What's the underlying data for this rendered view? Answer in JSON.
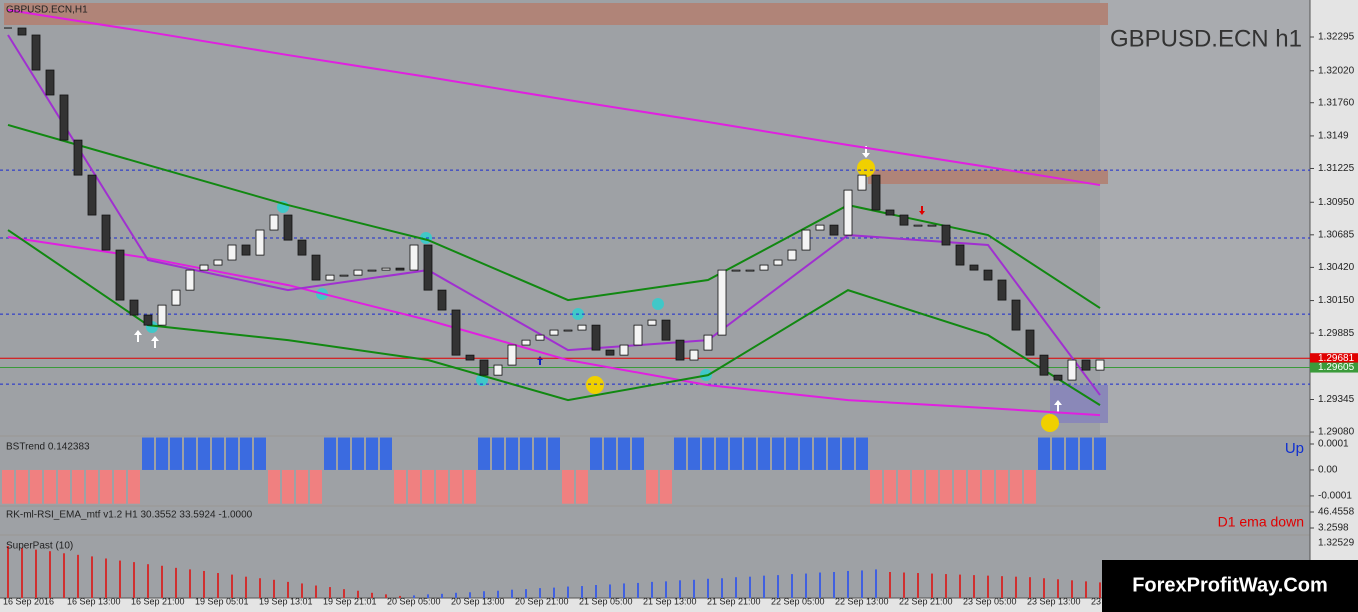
{
  "chart_data": [
    {
      "type": "candlestick",
      "title": "GBPUSD.ECN,H1",
      "symbol_label": "GBPUSD.ECN h1",
      "ylim": [
        1.29056,
        1.32596
      ],
      "yticks": [
        1.32295,
        {
          "value": 1.3202,
          "label": "1.32020"
        },
        {
          "value": 1.3176,
          "label": "1.31760"
        },
        1.3149,
        1.31225,
        {
          "value": 1.3095,
          "label": "1.30950"
        },
        1.30685,
        {
          "value": 1.3042,
          "label": "1.30420"
        },
        {
          "value": 1.3015,
          "label": "1.30150"
        },
        1.29885,
        1.29345,
        {
          "value": 1.2908,
          "label": "1.29080"
        }
      ],
      "categories": [
        "16 Sep 2016",
        "16 Sep 13:00",
        "16 Sep 21:00",
        "19 Sep 05:01",
        "19 Sep 13:01",
        "19 Sep 21:01",
        "20 Sep 05:00",
        "20 Sep 13:00",
        "20 Sep 21:00",
        "21 Sep 05:00",
        "21 Sep 13:00",
        "21 Sep 21:00",
        "22 Sep 05:00",
        "22 Sep 13:00",
        "22 Sep 21:00",
        "23 Sep 05:00",
        "23 Sep 13:00",
        "23"
      ],
      "close": [
        1.32368,
        1.32311,
        1.32026,
        1.31823,
        1.31456,
        1.31171,
        1.30846,
        1.30561,
        1.30154,
        1.30032,
        1.2995,
        1.30113,
        1.30235,
        1.30398,
        1.30439,
        1.3048,
        1.30602,
        1.3052,
        1.30724,
        1.30846,
        1.30642,
        1.3052,
        1.30317,
        1.30357,
        1.30357,
        1.30398,
        1.30398,
        1.30414,
        1.30398,
        1.30602,
        1.30235,
        1.30073,
        1.29706,
        1.29666,
        1.29543,
        1.29625,
        1.29788,
        1.29828,
        1.29869,
        1.2991,
        1.2991,
        1.2995,
        1.29747,
        1.29706,
        1.29788,
        1.2995,
        1.29991,
        1.29828,
        1.29666,
        1.29747,
        1.29869,
        1.30398,
        1.30398,
        1.30398,
        1.30439,
        1.3048,
        1.30561,
        1.30724,
        1.30764,
        1.30683,
        1.31049,
        1.31171,
        1.30887,
        1.30846,
        1.30764,
        1.30764,
        1.30764,
        1.30602,
        1.30439,
        1.30398,
        1.30317,
        1.30154,
        1.2991,
        1.29706,
        1.29543,
        1.29503,
        1.29666,
        1.29584,
        1.29666
      ],
      "overlay_x": [
        0,
        10,
        20,
        30,
        40,
        50,
        60,
        70,
        78
      ],
      "overlays": [
        {
          "color": "#e020e0",
          "values": [
            1.32515,
            1.32336,
            1.32148,
            1.31969,
            1.31782,
            1.31603,
            1.31416,
            1.31237,
            1.3109
          ]
        },
        {
          "color": "#e020e0",
          "values": [
            1.30667,
            1.30496,
            1.30276,
            1.29991,
            1.29666,
            1.29462,
            1.2934,
            1.29275,
            1.29218
          ]
        },
        {
          "color": "#118811",
          "values": [
            1.31579,
            1.31253,
            1.30927,
            1.30642,
            1.30154,
            1.30317,
            1.30927,
            1.30683,
            1.30089
          ]
        },
        {
          "color": "#118811",
          "values": [
            1.30724,
            1.2995,
            1.29828,
            1.29666,
            1.2934,
            1.29543,
            1.30235,
            1.29869,
            1.29299
          ]
        },
        {
          "color": "#a030d0",
          "values": [
            1.32311,
            1.3048,
            1.30235,
            1.30398,
            1.29747,
            1.29828,
            1.30683,
            1.30602,
            1.29381
          ]
        }
      ],
      "levels": [
        {
          "value": 1.31212,
          "color": "#1a2ad0"
        },
        {
          "value": 1.30659,
          "color": "#1a2ad0"
        },
        {
          "value": 1.3004,
          "color": "#1a2ad0"
        },
        {
          "value": 1.2947,
          "color": "#1a2ad0"
        }
      ],
      "price_markers": [
        {
          "value": 1.29681,
          "color": "#e00000"
        },
        {
          "value": 1.29605,
          "color": "#3a9a3a"
        }
      ]
    },
    {
      "type": "bar",
      "title": "BSTrend 0.142383",
      "annotation": "Up",
      "up_color": "#3b6be0",
      "down_color": "#f08080",
      "ylim": [
        -0.000135,
        0.000127
      ],
      "yticks": [
        0.0001,
        {
          "value": 0,
          "label": "0.00"
        },
        -0.0001
      ],
      "values": [
        -0.00013,
        -0.00013,
        -0.00013,
        -0.00013,
        -0.00013,
        -0.00013,
        -0.00013,
        -0.00013,
        -0.00013,
        -0.00013,
        0.000125,
        0.000125,
        0.000125,
        0.000125,
        0.000125,
        0.000125,
        0.000125,
        0.000125,
        0.000125,
        -0.00013,
        -0.00013,
        -0.00013,
        -0.00013,
        0.000125,
        0.000125,
        0.000125,
        0.000125,
        0.000125,
        -0.00013,
        -0.00013,
        -0.00013,
        -0.00013,
        -0.00013,
        -0.00013,
        0.000125,
        0.000125,
        0.000125,
        0.000125,
        0.000125,
        0.000125,
        -0.00013,
        -0.00013,
        0.000125,
        0.000125,
        0.000125,
        0.000125,
        -0.00013,
        -0.00013,
        0.000125,
        0.000125,
        0.000125,
        0.000125,
        0.000125,
        0.000125,
        0.000125,
        0.000125,
        0.000125,
        0.000125,
        0.000125,
        0.000125,
        0.000125,
        0.000125,
        -0.00013,
        -0.00013,
        -0.00013,
        -0.00013,
        -0.00013,
        -0.00013,
        -0.00013,
        -0.00013,
        -0.00013,
        -0.00013,
        -0.00013,
        -0.00013,
        0.000125,
        0.000125,
        0.000125,
        0.000125,
        0.000125
      ]
    },
    {
      "type": "indicator",
      "title": "RK-ml-RSI_EMA_mtf v1.2 H1 30.3552 33.5924 -1.0000",
      "annotation": "D1 ema down",
      "ylim": [
        -10.24,
        59.96
      ],
      "yticks": [
        46.4558,
        3.2598
      ]
    },
    {
      "type": "bar",
      "title": "SuperPast (10)",
      "top_label": "1.32529",
      "ylim": [
        0,
        1
      ],
      "series": [
        {
          "color": "#d03030",
          "values": [
            1,
            0.96,
            0.93,
            0.9,
            0.86,
            0.83,
            0.8,
            0.76,
            0.72,
            0.69,
            0.65,
            0.62,
            0.58,
            0.55,
            0.52,
            0.48,
            0.45,
            0.41,
            0.38,
            0.35,
            0.31,
            0.28,
            0.24,
            0.21,
            0.17,
            0.14,
            0.1,
            0.07,
            0.04,
            null,
            null,
            null,
            null,
            null,
            null,
            null,
            null,
            null,
            null,
            null,
            null,
            null,
            null,
            null,
            null,
            null,
            null,
            null,
            null,
            null,
            null,
            null,
            null,
            null,
            null,
            null,
            null,
            null,
            null,
            null,
            null,
            null,
            null,
            0.5,
            0.49,
            0.48,
            0.47,
            0.46,
            0.45,
            0.44,
            0.43,
            0.42,
            0.41,
            0.4,
            0.38,
            0.36,
            0.34,
            0.32,
            0.3
          ]
        },
        {
          "color": "#4060e0",
          "values": [
            null,
            null,
            null,
            null,
            null,
            null,
            null,
            null,
            null,
            null,
            null,
            null,
            null,
            null,
            null,
            null,
            null,
            null,
            null,
            null,
            null,
            null,
            null,
            null,
            null,
            null,
            null,
            null,
            null,
            0.05,
            0.07,
            0.08,
            0.1,
            0.11,
            0.13,
            0.14,
            0.16,
            0.17,
            0.19,
            0.2,
            0.22,
            0.23,
            0.25,
            0.26,
            0.28,
            0.29,
            0.31,
            0.32,
            0.34,
            0.35,
            0.37,
            0.38,
            0.4,
            0.41,
            0.43,
            0.44,
            0.46,
            0.47,
            0.49,
            0.5,
            0.52,
            0.53,
            0.55,
            null,
            null,
            null,
            null,
            null,
            null,
            null,
            null,
            null,
            null,
            null,
            null,
            null,
            null,
            null,
            null
          ]
        }
      ]
    }
  ],
  "watermark": "ForexProfitWay.Com"
}
